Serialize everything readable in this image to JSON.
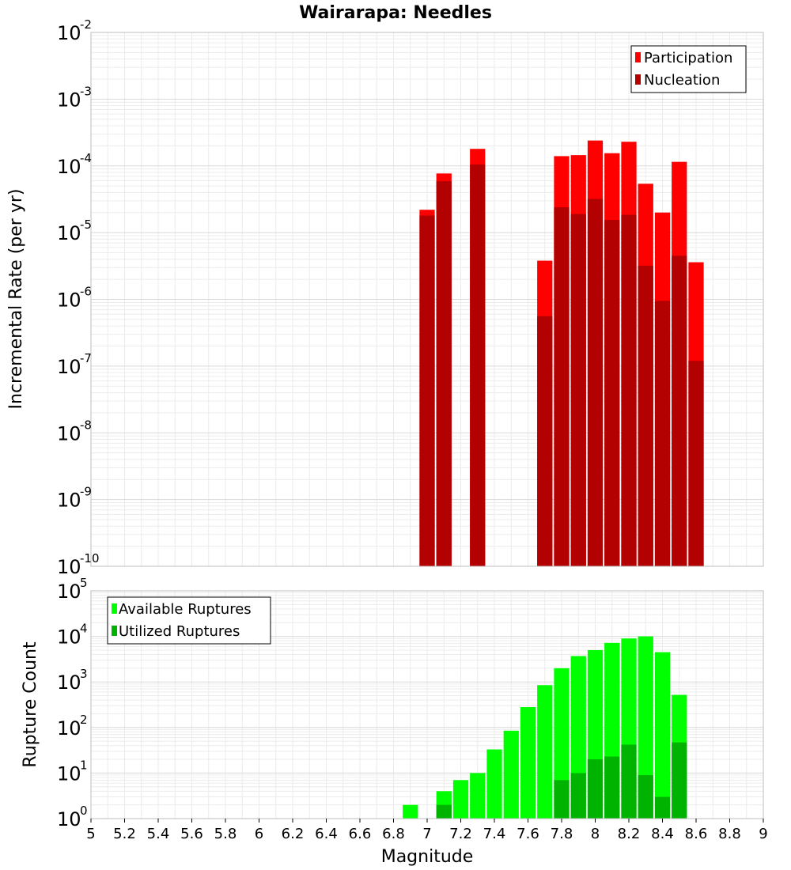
{
  "chart_data": [
    {
      "type": "bar",
      "title": "Wairarapa: Needles",
      "xlabel": "Magnitude",
      "ylabel": "Incremental Rate (per yr)",
      "yscale": "log",
      "xlim": [
        5,
        9
      ],
      "ylim": [
        1e-10,
        0.01
      ],
      "y_tick_exponents": [
        -10,
        -9,
        -8,
        -7,
        -6,
        -5,
        -4,
        -3,
        -2
      ],
      "grid": true,
      "legend_position": "top-right",
      "series": [
        {
          "name": "Participation",
          "color": "#ff0000",
          "x": [
            7.0,
            7.1,
            7.3,
            7.7,
            7.8,
            7.9,
            8.0,
            8.1,
            8.2,
            8.3,
            8.4,
            8.5,
            8.6
          ],
          "values": [
            2.2e-05,
            7.7e-05,
            0.00018,
            3.8e-06,
            0.00014,
            0.000145,
            0.00024,
            0.000155,
            0.00023,
            5.4e-05,
            2e-05,
            0.000115,
            3.6e-06
          ]
        },
        {
          "name": "Nucleation",
          "color": "#b30000",
          "x": [
            7.0,
            7.1,
            7.3,
            7.7,
            7.8,
            7.9,
            8.0,
            8.1,
            8.2,
            8.3,
            8.4,
            8.5,
            8.6
          ],
          "values": [
            1.8e-05,
            5.9e-05,
            0.000105,
            5.6e-07,
            2.4e-05,
            1.9e-05,
            3.2e-05,
            1.55e-05,
            1.85e-05,
            3.2e-06,
            9.5e-07,
            4.5e-06,
            1.2e-07
          ]
        }
      ]
    },
    {
      "type": "bar",
      "title": "",
      "xlabel": "Magnitude",
      "ylabel": "Rupture Count",
      "yscale": "log",
      "xlim": [
        5,
        9
      ],
      "ylim": [
        1,
        100000.0
      ],
      "y_tick_exponents": [
        0,
        1,
        2,
        3,
        4,
        5
      ],
      "x_ticks": [
        5,
        5.2,
        5.4,
        5.6,
        5.8,
        6,
        6.2,
        6.4,
        6.6,
        6.8,
        7,
        7.2,
        7.4,
        7.6,
        7.8,
        8,
        8.2,
        8.4,
        8.6,
        8.8,
        9
      ],
      "x_tick_labels": [
        "5",
        "5.2",
        "5.4",
        "5.6",
        "5.8",
        "6",
        "6.2",
        "6.4",
        "6.6",
        "6.8",
        "7",
        "7.2",
        "7.4",
        "7.6",
        "7.8",
        "8",
        "8.2",
        "8.4",
        "8.6",
        "8.8",
        "9"
      ],
      "grid": true,
      "legend_position": "top-left",
      "series": [
        {
          "name": "Available Ruptures",
          "color": "#00ff00",
          "x": [
            6.9,
            7.0,
            7.1,
            7.2,
            7.3,
            7.4,
            7.5,
            7.6,
            7.7,
            7.8,
            7.9,
            8.0,
            8.1,
            8.2,
            8.3,
            8.4,
            8.5,
            8.6
          ],
          "values": [
            2,
            1,
            4,
            7,
            10,
            33,
            85,
            280,
            850,
            2000,
            3700,
            5000,
            7200,
            9000,
            10000,
            4500,
            520,
            1
          ]
        },
        {
          "name": "Utilized Ruptures",
          "color": "#00b300",
          "x": [
            7.0,
            7.1,
            7.3,
            7.7,
            7.8,
            7.9,
            8.0,
            8.1,
            8.2,
            8.3,
            8.4,
            8.5,
            8.6
          ],
          "values": [
            1,
            2,
            1,
            1,
            7,
            10,
            20,
            23,
            42,
            9,
            3,
            47,
            1
          ]
        }
      ]
    }
  ]
}
